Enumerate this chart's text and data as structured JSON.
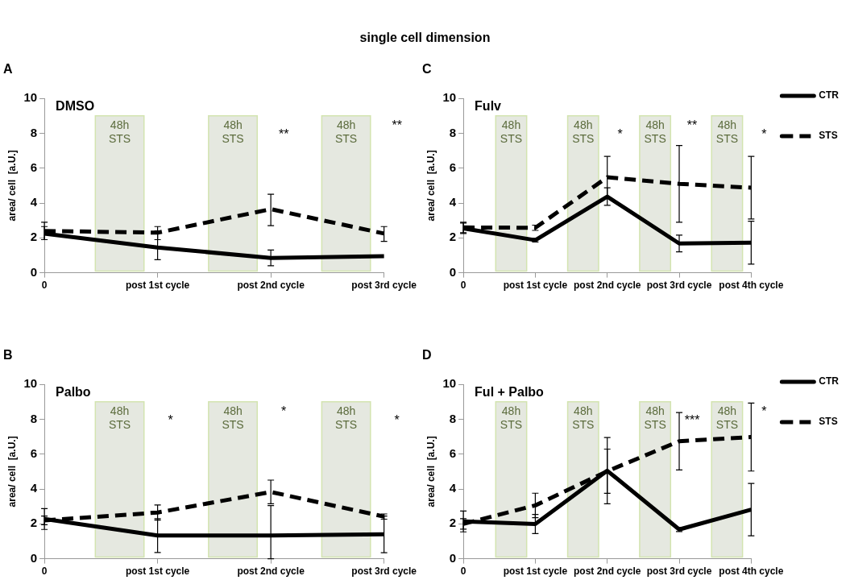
{
  "chart_data": [
    {
      "type": "other",
      "title": "single cell dimension"
    },
    {
      "type": "line",
      "title": "A",
      "subtitle": "DMSO",
      "ylabel": "area/ cell  [a.U.]",
      "categories": [
        "0",
        "post 1st cycle",
        "post 2nd cycle",
        "post 3rd cycle"
      ],
      "ylim": [
        0,
        10
      ],
      "yticks": [
        0,
        2,
        4,
        6,
        8,
        10
      ],
      "series": [
        {
          "color": "#000000",
          "line_style": "solid",
          "values": [
            2.25,
            1.45,
            0.85,
            0.95
          ],
          "errors": [
            [
              1.9,
              2.65
            ],
            [
              0.75,
              2.4
            ],
            [
              0.4,
              1.3
            ],
            null
          ]
        },
        {
          "color": "#000000",
          "line_style": "dashed",
          "values": [
            2.4,
            2.3,
            3.65,
            2.25
          ],
          "errors": [
            [
              1.9,
              2.9
            ],
            [
              1.9,
              2.65
            ],
            [
              2.7,
              4.5
            ],
            [
              1.8,
              2.65
            ]
          ]
        }
      ],
      "bands": [
        {
          "axis": "x",
          "from": "0",
          "to": "post 1st cycle",
          "label": "48h STS"
        },
        {
          "axis": "x",
          "from": "post 1st cycle",
          "to": "post 2nd cycle",
          "label": "48h STS"
        },
        {
          "axis": "x",
          "from": "post 2nd cycle",
          "to": "post 3rd cycle",
          "label": "48h STS"
        }
      ],
      "annotations": [
        "**",
        "**"
      ]
    },
    {
      "type": "line",
      "title": "C",
      "subtitle": "Fulv",
      "ylabel": "area/ cell  [a.U.]",
      "categories": [
        "0",
        "post 1st cycle",
        "post 2nd cycle",
        "post 3rd cycle",
        "post 4th cycle"
      ],
      "ylim": [
        0,
        10
      ],
      "yticks": [
        0,
        2,
        4,
        6,
        8,
        10
      ],
      "legend": "right",
      "series": [
        {
          "name": "CTR",
          "color": "#000000",
          "line_style": "solid",
          "values": [
            2.55,
            1.87,
            4.37,
            1.68,
            1.73
          ],
          "errors": [
            0.3,
            0.1,
            0.5,
            0.48,
            1.23
          ]
        },
        {
          "name": "STS",
          "color": "#000000",
          "line_style": "dashed",
          "values": [
            2.6,
            2.58,
            5.48,
            5.1,
            4.88
          ],
          "errors": [
            0.3,
            0.15,
            1.2,
            2.2,
            1.8
          ]
        }
      ],
      "bands": [
        {
          "axis": "x",
          "from": "0",
          "to": "post 1st cycle",
          "label": "48h STS"
        },
        {
          "axis": "x",
          "from": "post 1st cycle",
          "to": "post 2nd cycle",
          "label": "48h STS"
        },
        {
          "axis": "x",
          "from": "post 2nd cycle",
          "to": "post 3rd cycle",
          "label": "48h STS"
        },
        {
          "axis": "x",
          "from": "post 3rd cycle",
          "to": "post 4th cycle",
          "label": "48h STS"
        }
      ],
      "annotations": [
        "*",
        "**",
        "*"
      ]
    },
    {
      "type": "line",
      "title": "B",
      "subtitle": "Palbo",
      "ylabel": "area/ cell  [a.U.]",
      "categories": [
        "0",
        "post 1st cycle",
        "post 2nd cycle",
        "post 3rd cycle"
      ],
      "ylim": [
        0,
        10
      ],
      "yticks": [
        0,
        2,
        4,
        6,
        8,
        10
      ],
      "series": [
        {
          "color": "#000000",
          "line_style": "solid",
          "values": [
            2.28,
            1.33,
            1.33,
            1.4
          ],
          "errors": [
            0.6,
            0.97,
            [
              0,
              3.05
            ],
            1.05
          ]
        },
        {
          "color": "#000000",
          "line_style": "dashed",
          "values": [
            2.2,
            2.65,
            3.83,
            2.42
          ],
          "errors": [
            0.25,
            0.43,
            0.68,
            0.15
          ]
        }
      ],
      "bands": [
        {
          "axis": "x",
          "from": "0",
          "to": "post 1st cycle",
          "label": "48h STS"
        },
        {
          "axis": "x",
          "from": "post 1st cycle",
          "to": "post 2nd cycle",
          "label": "48h STS"
        },
        {
          "axis": "x",
          "from": "post 2nd cycle",
          "to": "post 3rd cycle",
          "label": "48h STS"
        }
      ],
      "annotations": [
        "*",
        "*",
        "*"
      ]
    },
    {
      "type": "line",
      "title": "D",
      "subtitle": "Ful + Palbo",
      "ylabel": "area/ cell  [a.U.]",
      "categories": [
        "0",
        "post 1st cycle",
        "post 2nd cycle",
        "post 3rd cycle",
        "post 4th cycle"
      ],
      "ylim": [
        0,
        10
      ],
      "yticks": [
        0,
        2,
        4,
        6,
        8,
        10
      ],
      "legend": "right",
      "series": [
        {
          "name": "CTR",
          "color": "#000000",
          "line_style": "solid",
          "values": [
            2.14,
            1.99,
            5.05,
            1.68,
            2.82
          ],
          "errors": [
            0.6,
            0.55,
            1.9,
            0.12,
            1.5
          ]
        },
        {
          "name": "STS",
          "color": "#000000",
          "line_style": "dashed",
          "values": [
            2.0,
            3.06,
            5.02,
            6.74,
            6.98
          ],
          "errors": [
            0.3,
            0.7,
            1.27,
            1.65,
            1.95
          ]
        }
      ],
      "bands": [
        {
          "axis": "x",
          "from": "0",
          "to": "post 1st cycle",
          "label": "48h STS"
        },
        {
          "axis": "x",
          "from": "post 1st cycle",
          "to": "post 2nd cycle",
          "label": "48h STS"
        },
        {
          "axis": "x",
          "from": "post 2nd cycle",
          "to": "post 3rd cycle",
          "label": "48h STS"
        },
        {
          "axis": "x",
          "from": "post 3rd cycle",
          "to": "post 4th cycle",
          "label": "48h STS"
        }
      ],
      "annotations": [
        "***",
        "*"
      ]
    }
  ]
}
